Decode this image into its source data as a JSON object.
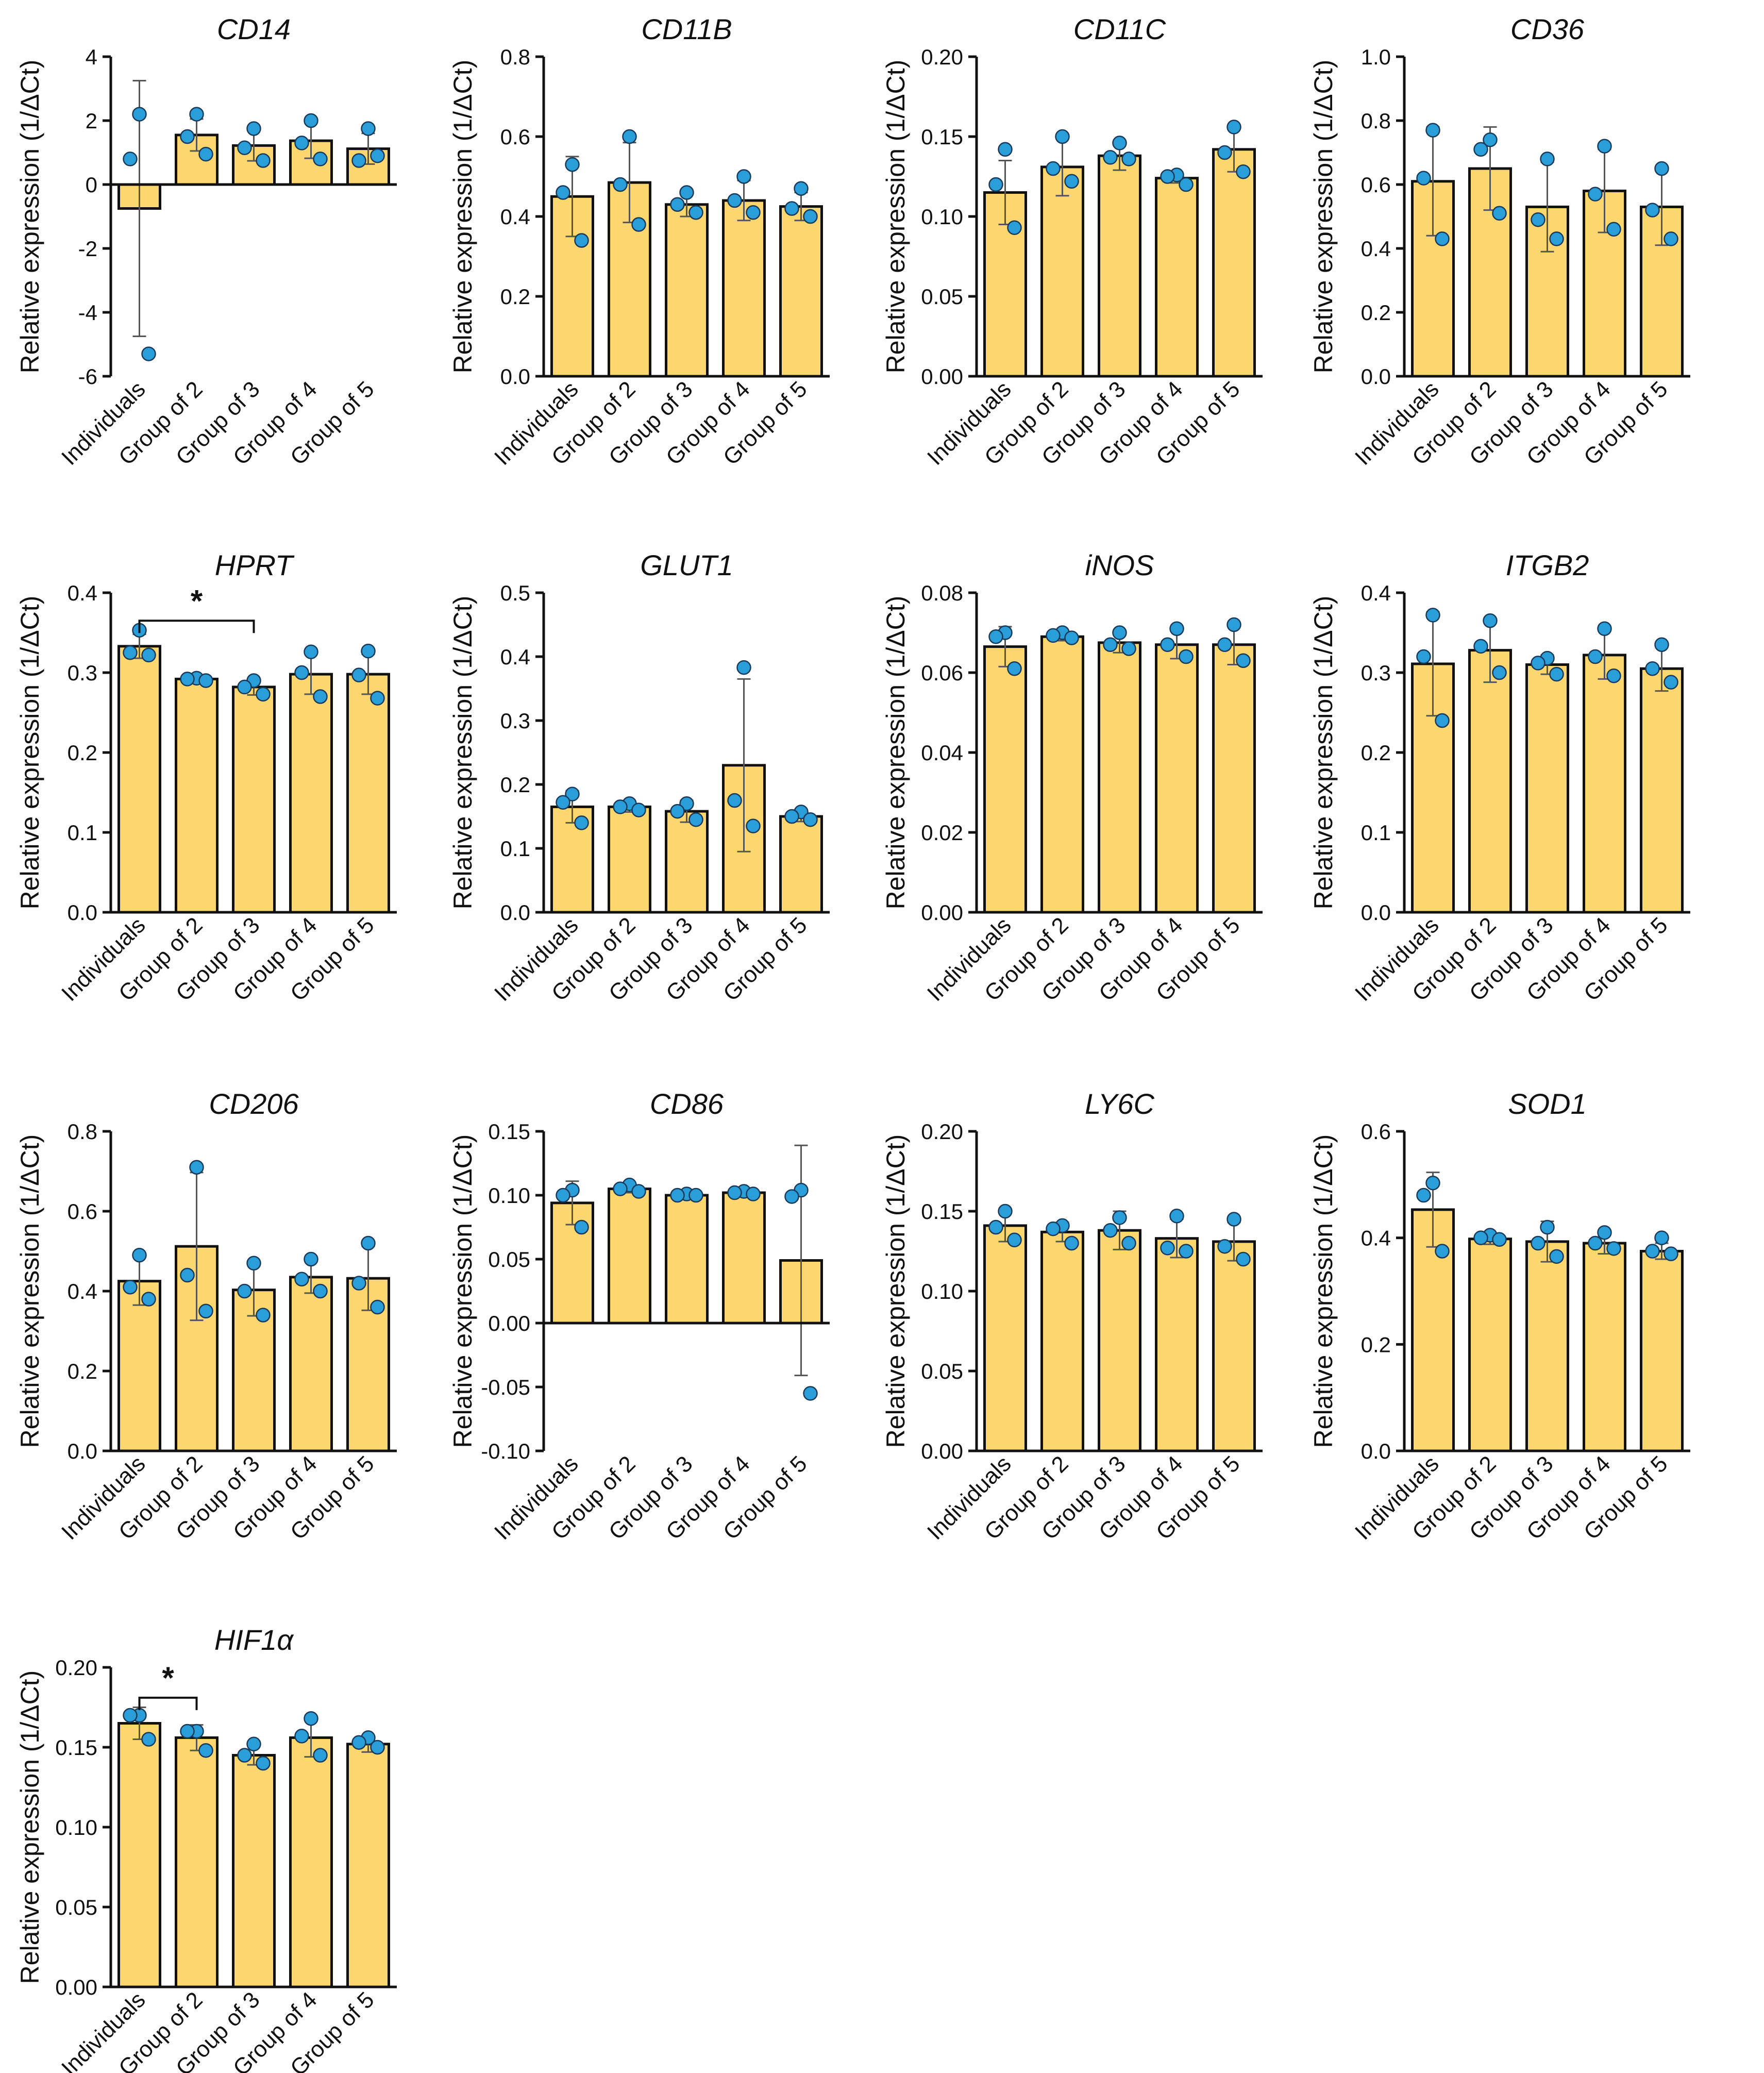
{
  "colors": {
    "bar": "#FCD770",
    "bar_edge": "#111111",
    "point": "#2A9ED8",
    "point_edge": "#1a3a5a",
    "errorbar": "#555555"
  },
  "chart_data": [
    {
      "type": "bar",
      "title": "CD14",
      "ylabel": "Relative expression (1/ΔCt)",
      "categories": [
        "Individuals",
        "Group of 2",
        "Group of 3",
        "Group of 4",
        "Group of 5"
      ],
      "ylim": [
        -6,
        4
      ],
      "yticks": [
        -6,
        -4,
        -2,
        0,
        2,
        4
      ],
      "ytick_labels": [
        "-6",
        "-4",
        "-2",
        "0",
        "2",
        "4"
      ],
      "values": [
        -0.75,
        1.55,
        1.22,
        1.37,
        1.12
      ],
      "sd": [
        4.0,
        0.5,
        0.48,
        0.55,
        0.48
      ],
      "points": [
        [
          2.2,
          0.8,
          -5.3
        ],
        [
          2.2,
          1.5,
          0.95
        ],
        [
          1.75,
          1.15,
          0.75
        ],
        [
          2.0,
          1.3,
          0.8
        ],
        [
          1.75,
          0.75,
          0.9
        ]
      ],
      "significance": []
    },
    {
      "type": "bar",
      "title": "CD11B",
      "ylabel": "Relative expression (1/ΔCt)",
      "categories": [
        "Individuals",
        "Group of 2",
        "Group of 3",
        "Group of 4",
        "Group of 5"
      ],
      "ylim": [
        0,
        0.8
      ],
      "yticks": [
        0,
        0.2,
        0.4,
        0.6,
        0.8
      ],
      "ytick_labels": [
        "0.0",
        "0.2",
        "0.4",
        "0.6",
        "0.8"
      ],
      "values": [
        0.45,
        0.485,
        0.43,
        0.44,
        0.425
      ],
      "sd": [
        0.1,
        0.1,
        0.03,
        0.05,
        0.035
      ],
      "points": [
        [
          0.53,
          0.46,
          0.34
        ],
        [
          0.6,
          0.48,
          0.38
        ],
        [
          0.46,
          0.43,
          0.41
        ],
        [
          0.5,
          0.44,
          0.41
        ],
        [
          0.47,
          0.42,
          0.4
        ]
      ],
      "significance": []
    },
    {
      "type": "bar",
      "title": "CD11C",
      "ylabel": "Relative expression (1/ΔCt)",
      "categories": [
        "Individuals",
        "Group of 2",
        "Group of 3",
        "Group of 4",
        "Group of 5"
      ],
      "ylim": [
        0,
        0.2
      ],
      "yticks": [
        0,
        0.05,
        0.1,
        0.15,
        0.2
      ],
      "ytick_labels": [
        "0.00",
        "0.05",
        "0.10",
        "0.15",
        "0.20"
      ],
      "values": [
        0.115,
        0.131,
        0.138,
        0.124,
        0.142
      ],
      "sd": [
        0.02,
        0.018,
        0.009,
        0.003,
        0.014
      ],
      "points": [
        [
          0.142,
          0.12,
          0.093
        ],
        [
          0.15,
          0.13,
          0.122
        ],
        [
          0.146,
          0.137,
          0.136
        ],
        [
          0.126,
          0.125,
          0.12
        ],
        [
          0.156,
          0.14,
          0.128
        ]
      ],
      "significance": []
    },
    {
      "type": "bar",
      "title": "CD36",
      "ylabel": "Relative expression (1/ΔCt)",
      "categories": [
        "Individuals",
        "Group of 2",
        "Group of 3",
        "Group of 4",
        "Group of 5"
      ],
      "ylim": [
        0,
        1.0
      ],
      "yticks": [
        0,
        0.2,
        0.4,
        0.6,
        0.8,
        1.0
      ],
      "ytick_labels": [
        "0.0",
        "0.2",
        "0.4",
        "0.6",
        "0.8",
        "1.0"
      ],
      "values": [
        0.61,
        0.65,
        0.53,
        0.58,
        0.53
      ],
      "sd": [
        0.17,
        0.13,
        0.14,
        0.13,
        0.12
      ],
      "points": [
        [
          0.77,
          0.62,
          0.43
        ],
        [
          0.74,
          0.71,
          0.51
        ],
        [
          0.68,
          0.49,
          0.43
        ],
        [
          0.72,
          0.57,
          0.46
        ],
        [
          0.65,
          0.52,
          0.43
        ]
      ],
      "significance": []
    },
    {
      "type": "bar",
      "title": "HPRT",
      "ylabel": "Relative expression (1/ΔCt)",
      "categories": [
        "Individuals",
        "Group of 2",
        "Group of 3",
        "Group of 4",
        "Group of 5"
      ],
      "ylim": [
        0,
        0.4
      ],
      "yticks": [
        0,
        0.1,
        0.2,
        0.3,
        0.4
      ],
      "ytick_labels": [
        "0.0",
        "0.1",
        "0.2",
        "0.3",
        "0.4"
      ],
      "values": [
        0.333,
        0.292,
        0.282,
        0.298,
        0.298
      ],
      "sd": [
        0.015,
        0.003,
        0.01,
        0.025,
        0.025
      ],
      "points": [
        [
          0.353,
          0.325,
          0.322
        ],
        [
          0.293,
          0.292,
          0.29
        ],
        [
          0.29,
          0.282,
          0.273
        ],
        [
          0.326,
          0.3,
          0.27
        ],
        [
          0.327,
          0.297,
          0.268
        ]
      ],
      "significance": [
        {
          "from": 0,
          "to": 2,
          "label": "*",
          "y": 0.365
        }
      ]
    },
    {
      "type": "bar",
      "title": "GLUT1",
      "ylabel": "Relative expression (1/ΔCt)",
      "categories": [
        "Individuals",
        "Group of 2",
        "Group of 3",
        "Group of 4",
        "Group of 5"
      ],
      "ylim": [
        0,
        0.5
      ],
      "yticks": [
        0,
        0.1,
        0.2,
        0.3,
        0.4,
        0.5
      ],
      "ytick_labels": [
        "0.0",
        "0.1",
        "0.2",
        "0.3",
        "0.4",
        "0.5"
      ],
      "values": [
        0.165,
        0.165,
        0.158,
        0.23,
        0.15
      ],
      "sd": [
        0.025,
        0.008,
        0.017,
        0.135,
        0.008
      ],
      "points": [
        [
          0.185,
          0.172,
          0.14
        ],
        [
          0.17,
          0.165,
          0.16
        ],
        [
          0.17,
          0.158,
          0.145
        ],
        [
          0.383,
          0.175,
          0.135
        ],
        [
          0.157,
          0.15,
          0.145
        ]
      ],
      "significance": []
    },
    {
      "type": "bar",
      "title": "iNOS",
      "ylabel": "Relative expression (1/ΔCt)",
      "categories": [
        "Individuals",
        "Group of 2",
        "Group of 3",
        "Group of 4",
        "Group of 5"
      ],
      "ylim": [
        0,
        0.08
      ],
      "yticks": [
        0,
        0.02,
        0.04,
        0.06,
        0.08
      ],
      "ytick_labels": [
        "0.00",
        "0.02",
        "0.04",
        "0.06",
        "0.08"
      ],
      "values": [
        0.0665,
        0.069,
        0.0675,
        0.067,
        0.067
      ],
      "sd": [
        0.005,
        0.001,
        0.0025,
        0.0035,
        0.005
      ],
      "points": [
        [
          0.07,
          0.069,
          0.061
        ],
        [
          0.07,
          0.0693,
          0.0687
        ],
        [
          0.07,
          0.067,
          0.066
        ],
        [
          0.071,
          0.067,
          0.064
        ],
        [
          0.072,
          0.067,
          0.063
        ]
      ],
      "significance": []
    },
    {
      "type": "bar",
      "title": "ITGB2",
      "ylabel": "Relative expression (1/ΔCt)",
      "categories": [
        "Individuals",
        "Group of 2",
        "Group of 3",
        "Group of 4",
        "Group of 5"
      ],
      "ylim": [
        0,
        0.4
      ],
      "yticks": [
        0,
        0.1,
        0.2,
        0.3,
        0.4
      ],
      "ytick_labels": [
        "0.0",
        "0.1",
        "0.2",
        "0.3",
        "0.4"
      ],
      "values": [
        0.311,
        0.328,
        0.31,
        0.322,
        0.305
      ],
      "sd": [
        0.065,
        0.04,
        0.012,
        0.03,
        0.028
      ],
      "points": [
        [
          0.372,
          0.32,
          0.24
        ],
        [
          0.365,
          0.333,
          0.3
        ],
        [
          0.318,
          0.312,
          0.298
        ],
        [
          0.355,
          0.32,
          0.296
        ],
        [
          0.335,
          0.305,
          0.288
        ]
      ],
      "significance": []
    },
    {
      "type": "bar",
      "title": "CD206",
      "ylabel": "Relative expression (1/ΔCt)",
      "categories": [
        "Individuals",
        "Group of 2",
        "Group of 3",
        "Group of 4",
        "Group of 5"
      ],
      "ylim": [
        0,
        0.8
      ],
      "yticks": [
        0,
        0.2,
        0.4,
        0.6,
        0.8
      ],
      "ytick_labels": [
        "0.0",
        "0.2",
        "0.4",
        "0.6",
        "0.8"
      ],
      "values": [
        0.425,
        0.512,
        0.403,
        0.435,
        0.432
      ],
      "sd": [
        0.06,
        0.185,
        0.065,
        0.04,
        0.08
      ],
      "points": [
        [
          0.49,
          0.41,
          0.38
        ],
        [
          0.71,
          0.44,
          0.35
        ],
        [
          0.47,
          0.4,
          0.34
        ],
        [
          0.48,
          0.43,
          0.4
        ],
        [
          0.52,
          0.42,
          0.36
        ]
      ],
      "significance": []
    },
    {
      "type": "bar",
      "title": "CD86",
      "ylabel": "Relative expression (1/ΔCt)",
      "categories": [
        "Individuals",
        "Group of 2",
        "Group of 3",
        "Group of 4",
        "Group of 5"
      ],
      "ylim": [
        -0.1,
        0.15
      ],
      "yticks": [
        -0.1,
        -0.05,
        0,
        0.05,
        0.1,
        0.15
      ],
      "ytick_labels": [
        "-0.10",
        "-0.05",
        "0.00",
        "0.05",
        "0.10",
        "0.15"
      ],
      "values": [
        0.094,
        0.105,
        0.1,
        0.102,
        0.049
      ],
      "sd": [
        0.017,
        0.003,
        0.001,
        0.002,
        0.09
      ],
      "points": [
        [
          0.104,
          0.1,
          0.075
        ],
        [
          0.108,
          0.105,
          0.103
        ],
        [
          0.101,
          0.1,
          0.1
        ],
        [
          0.103,
          0.102,
          0.101
        ],
        [
          0.104,
          0.099,
          -0.055
        ]
      ],
      "significance": []
    },
    {
      "type": "bar",
      "title": "LY6C",
      "ylabel": "Relative expression (1/ΔCt)",
      "categories": [
        "Individuals",
        "Group of 2",
        "Group of 3",
        "Group of 4",
        "Group of 5"
      ],
      "ylim": [
        0,
        0.2
      ],
      "yticks": [
        0,
        0.05,
        0.1,
        0.15,
        0.2
      ],
      "ytick_labels": [
        "0.00",
        "0.05",
        "0.10",
        "0.15",
        "0.20"
      ],
      "values": [
        0.141,
        0.137,
        0.138,
        0.133,
        0.131
      ],
      "sd": [
        0.01,
        0.006,
        0.012,
        0.012,
        0.012
      ],
      "points": [
        [
          0.15,
          0.14,
          0.132
        ],
        [
          0.141,
          0.139,
          0.13
        ],
        [
          0.146,
          0.138,
          0.13
        ],
        [
          0.147,
          0.127,
          0.125
        ],
        [
          0.145,
          0.128,
          0.12
        ]
      ],
      "significance": []
    },
    {
      "type": "bar",
      "title": "SOD1",
      "ylabel": "Relative expression (1/ΔCt)",
      "categories": [
        "Individuals",
        "Group of 2",
        "Group of 3",
        "Group of 4",
        "Group of 5"
      ],
      "ylim": [
        0,
        0.6
      ],
      "yticks": [
        0,
        0.2,
        0.4,
        0.6
      ],
      "ytick_labels": [
        "0.0",
        "0.2",
        "0.4",
        "0.6"
      ],
      "values": [
        0.453,
        0.398,
        0.393,
        0.39,
        0.375
      ],
      "sd": [
        0.07,
        0.01,
        0.038,
        0.02,
        0.015
      ],
      "points": [
        [
          0.503,
          0.48,
          0.375
        ],
        [
          0.405,
          0.4,
          0.397
        ],
        [
          0.42,
          0.39,
          0.365
        ],
        [
          0.41,
          0.39,
          0.38
        ],
        [
          0.4,
          0.375,
          0.37
        ]
      ],
      "significance": []
    },
    {
      "type": "bar",
      "title": "HIF1α",
      "ylabel": "Relative expression (1/ΔCt)",
      "categories": [
        "Individuals",
        "Group of 2",
        "Group of 3",
        "Group of 4",
        "Group of 5"
      ],
      "ylim": [
        0,
        0.2
      ],
      "yticks": [
        0,
        0.05,
        0.1,
        0.15,
        0.2
      ],
      "ytick_labels": [
        "0.00",
        "0.05",
        "0.10",
        "0.15",
        "0.20"
      ],
      "values": [
        0.165,
        0.156,
        0.145,
        0.156,
        0.152
      ],
      "sd": [
        0.01,
        0.008,
        0.006,
        0.012,
        0.005
      ],
      "points": [
        [
          0.17,
          0.17,
          0.155
        ],
        [
          0.16,
          0.16,
          0.148
        ],
        [
          0.152,
          0.145,
          0.14
        ],
        [
          0.168,
          0.157,
          0.145
        ],
        [
          0.156,
          0.153,
          0.15
        ]
      ],
      "significance": [
        {
          "from": 0,
          "to": 1,
          "label": "*",
          "y": 0.181
        }
      ]
    }
  ]
}
